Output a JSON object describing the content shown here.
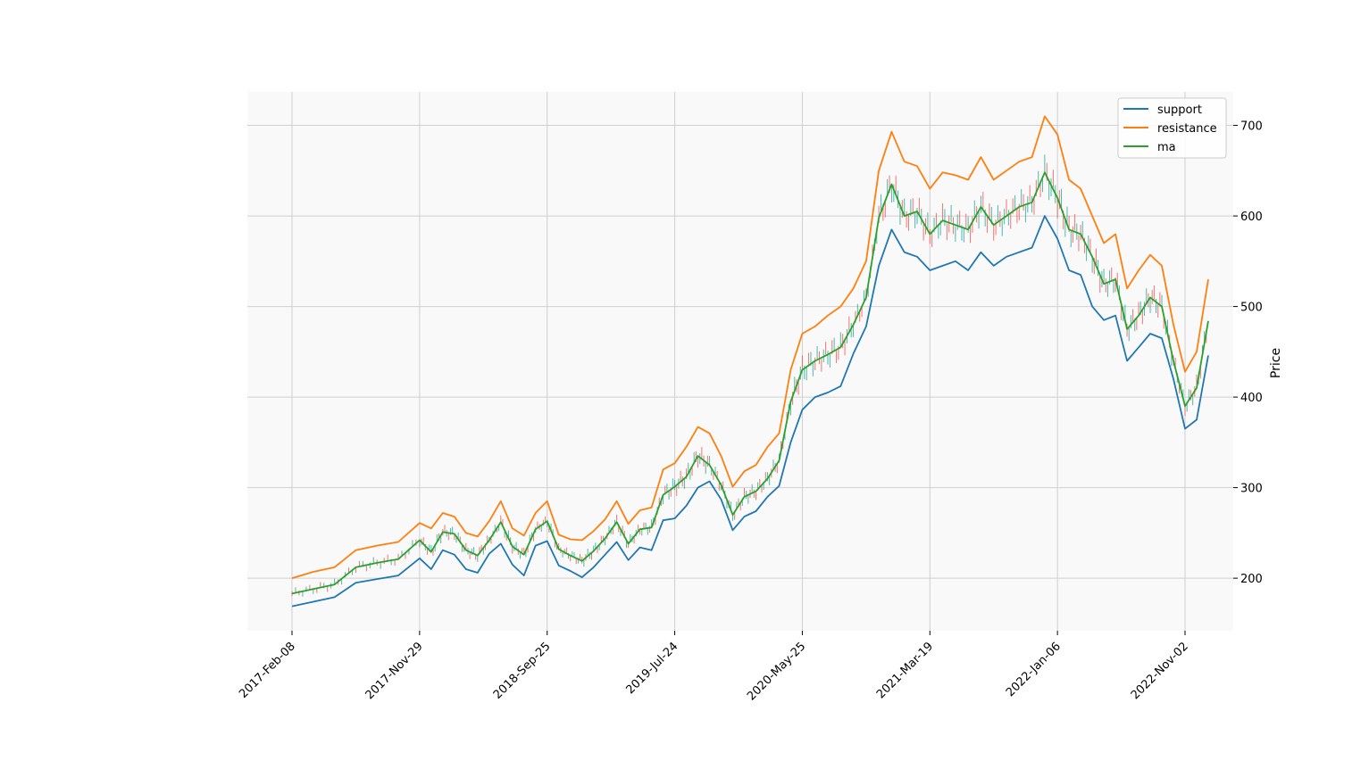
{
  "chart_data": {
    "type": "line",
    "title": "",
    "xlabel": "",
    "ylabel": "Price",
    "ylim": [
      142,
      737
    ],
    "yticks": [
      200,
      300,
      400,
      500,
      600,
      700
    ],
    "grid": true,
    "legend_position": "top-right",
    "x_tick_labels": [
      "2017-Feb-08",
      "2017-Nov-29",
      "2018-Sep-25",
      "2019-Jul-24",
      "2020-May-25",
      "2021-Mar-19",
      "2022-Jan-06",
      "2022-Nov-02"
    ],
    "x": [
      "2017-Feb-08",
      "2017-Apr-03",
      "2017-May-25",
      "2017-Jul-18",
      "2017-Sep-08",
      "2017-Oct-03",
      "2017-Nov-29",
      "2017-Dec-28",
      "2018-Jan-25",
      "2018-Feb-22",
      "2018-Mar-22",
      "2018-Apr-19",
      "2018-May-17",
      "2018-Jun-14",
      "2018-Jul-12",
      "2018-Aug-09",
      "2018-Sep-06",
      "2018-Sep-25",
      "2018-Oct-23",
      "2018-Nov-20",
      "2018-Dec-18",
      "2019-Jan-17",
      "2019-Feb-14",
      "2019-Mar-14",
      "2019-Apr-11",
      "2019-May-09",
      "2019-Jun-06",
      "2019-Jul-03",
      "2019-Jul-24",
      "2019-Aug-21",
      "2019-Sep-18",
      "2019-Oct-16",
      "2019-Nov-13",
      "2019-Dec-11",
      "2020-Jan-10",
      "2020-Feb-07",
      "2020-Mar-09",
      "2020-Apr-06",
      "2020-May-04",
      "2020-May-25",
      "2020-Jun-22",
      "2020-Jul-20",
      "2020-Aug-17",
      "2020-Sep-14",
      "2020-Oct-12",
      "2020-Nov-09",
      "2020-Dec-07",
      "2021-Jan-05",
      "2021-Feb-02",
      "2021-Mar-19",
      "2021-Apr-16",
      "2021-May-14",
      "2021-Jun-11",
      "2021-Jul-09",
      "2021-Aug-06",
      "2021-Sep-03",
      "2021-Oct-01",
      "2021-Nov-01",
      "2021-Dec-01",
      "2022-Jan-06",
      "2022-Feb-03",
      "2022-Mar-03",
      "2022-Mar-31",
      "2022-Apr-28",
      "2022-May-26",
      "2022-Jun-23",
      "2022-Jul-21",
      "2022-Aug-18",
      "2022-Sep-15",
      "2022-Oct-13",
      "2022-Nov-02",
      "2022-Dec-01",
      "2022-Dec-15"
    ],
    "series": [
      {
        "name": "support",
        "color": "#1f77b4",
        "values": [
          169,
          174,
          179,
          195,
          199,
          203,
          222,
          210,
          231,
          226,
          210,
          206,
          227,
          238,
          215,
          203,
          236,
          241,
          214,
          208,
          201,
          212,
          226,
          240,
          220,
          234,
          231,
          264,
          266,
          280,
          300,
          307,
          287,
          253,
          268,
          274,
          290,
          302,
          350,
          386,
          400,
          405,
          412,
          448,
          478,
          545,
          585,
          560,
          555,
          540,
          545,
          550,
          540,
          560,
          545,
          555,
          560,
          565,
          600,
          575,
          540,
          535,
          500,
          485,
          490,
          440,
          455,
          470,
          465,
          420,
          365,
          375,
          446
        ]
      },
      {
        "name": "resistance",
        "color": "#ff7f0e",
        "values": [
          200,
          207,
          212,
          231,
          236,
          240,
          261,
          255,
          272,
          268,
          250,
          246,
          263,
          285,
          255,
          247,
          272,
          285,
          248,
          243,
          242,
          252,
          265,
          285,
          260,
          275,
          278,
          320,
          327,
          345,
          367,
          360,
          335,
          301,
          318,
          325,
          345,
          360,
          430,
          470,
          478,
          490,
          500,
          520,
          550,
          650,
          693,
          660,
          655,
          630,
          648,
          645,
          640,
          665,
          640,
          650,
          660,
          665,
          710,
          690,
          640,
          630,
          600,
          570,
          580,
          520,
          540,
          557,
          545,
          480,
          428,
          450,
          530
        ]
      },
      {
        "name": "ma",
        "color": "#2ca02c",
        "values": [
          183,
          188,
          193,
          212,
          217,
          221,
          242,
          229,
          251,
          249,
          231,
          225,
          242,
          262,
          235,
          226,
          254,
          263,
          232,
          225,
          219,
          230,
          244,
          262,
          238,
          254,
          256,
          292,
          301,
          312,
          335,
          325,
          303,
          270,
          290,
          296,
          310,
          330,
          395,
          430,
          440,
          447,
          455,
          480,
          510,
          598,
          635,
          600,
          605,
          580,
          595,
          590,
          585,
          610,
          590,
          600,
          610,
          615,
          648,
          620,
          585,
          580,
          555,
          525,
          530,
          475,
          490,
          510,
          500,
          440,
          390,
          410,
          484
        ]
      }
    ]
  }
}
